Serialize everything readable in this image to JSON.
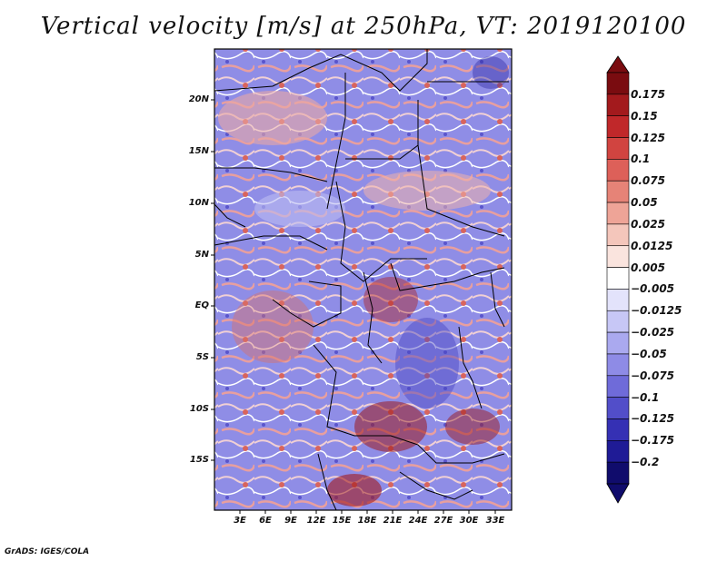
{
  "title": "Vertical velocity [m/s] at 250hPa, VT: 2019120100",
  "credit": "GrADS: IGES/COLA",
  "map": {
    "variable": "Vertical velocity",
    "units": "m/s",
    "level": "250hPa",
    "valid_time": "2019120100",
    "lon_labels": [
      "3E",
      "6E",
      "9E",
      "12E",
      "15E",
      "18E",
      "21E",
      "24E",
      "27E",
      "30E",
      "33E"
    ],
    "lat_labels": [
      "20N",
      "15N",
      "10N",
      "5N",
      "EQ",
      "5S",
      "10S",
      "15S"
    ]
  },
  "colorbar": {
    "labels": [
      "0.175",
      "0.15",
      "0.125",
      "0.1",
      "0.075",
      "0.05",
      "0.025",
      "0.0125",
      "0.005",
      "−0.005",
      "−0.0125",
      "−0.025",
      "−0.05",
      "−0.075",
      "−0.1",
      "−0.125",
      "−0.175",
      "−0.2"
    ],
    "colors": [
      "#7a0c10",
      "#a31a1d",
      "#c0282a",
      "#d14440",
      "#dd6059",
      "#e68377",
      "#eea497",
      "#f4c6bb",
      "#fae4de",
      "#ffffff",
      "#e3e3fb",
      "#c7c7f6",
      "#aaa9ef",
      "#8e8be6",
      "#6f6bd9",
      "#524ec9",
      "#3530b4",
      "#1f1b96",
      "#100c6c"
    ]
  }
}
